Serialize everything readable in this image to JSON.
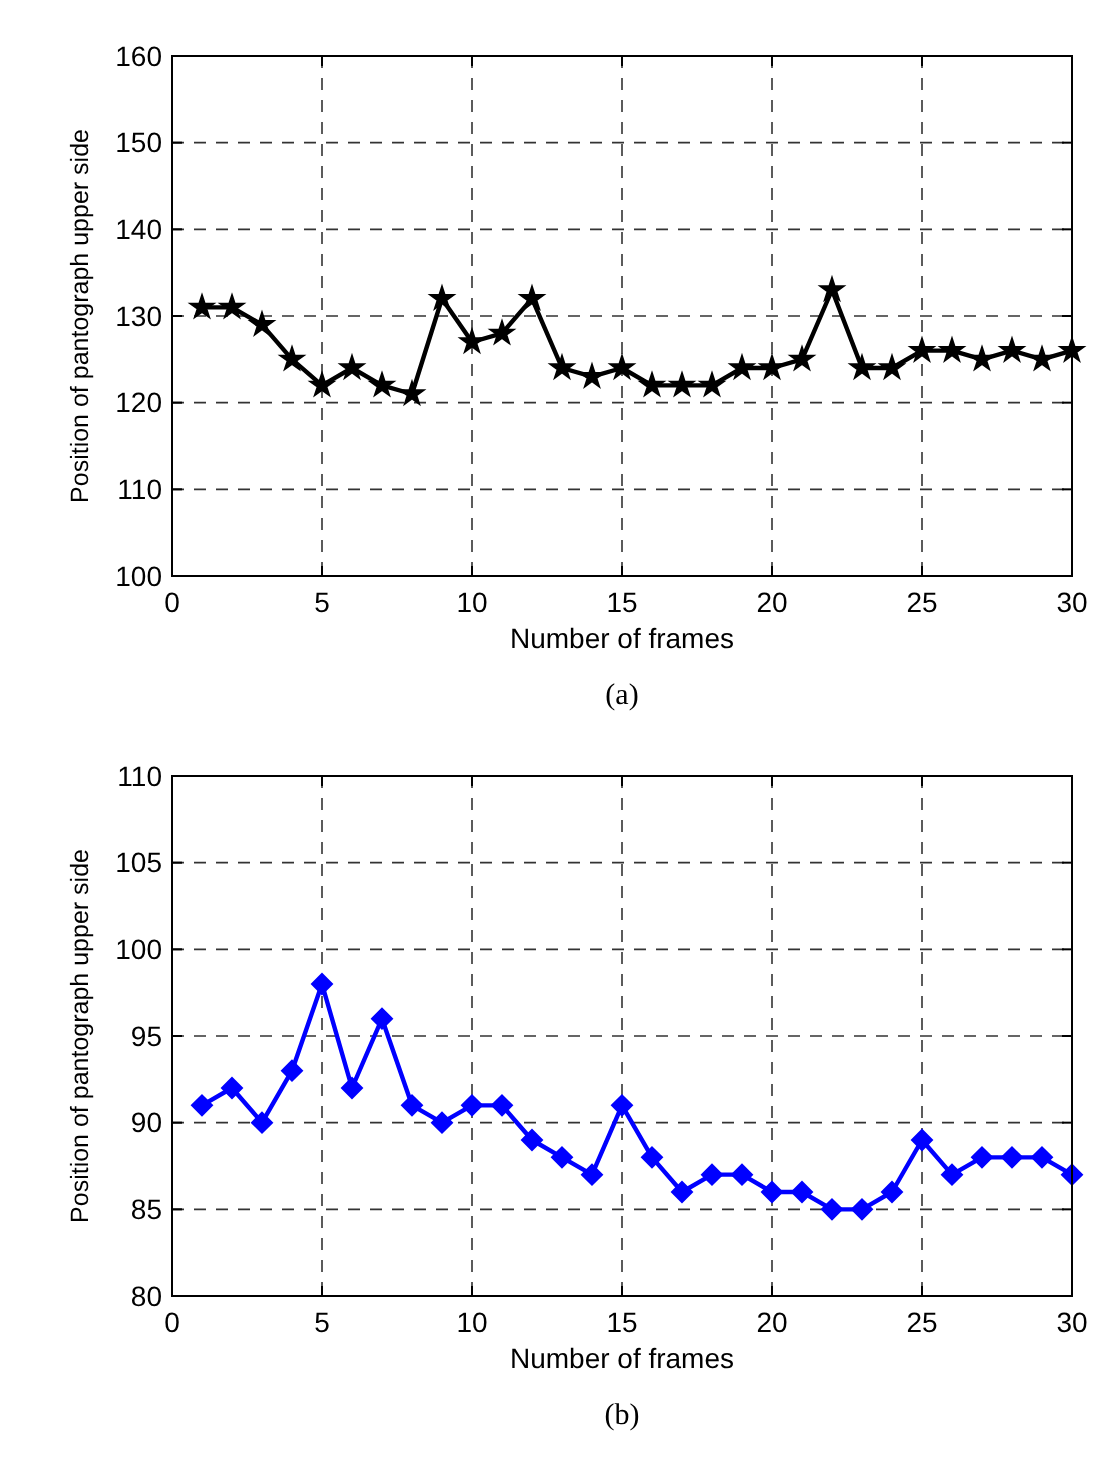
{
  "chart_data": [
    {
      "type": "line",
      "xlabel": "Number of frames",
      "ylabel": "Position of pantograph upper side",
      "annotations": [
        "(a)"
      ],
      "marker": "star",
      "line_style": "solid",
      "grid": true,
      "xlim": [
        0,
        30
      ],
      "xticks": [
        0,
        5,
        10,
        15,
        20,
        25,
        30
      ],
      "ylim": [
        100,
        160
      ],
      "yticks": [
        100,
        110,
        120,
        130,
        140,
        150,
        160
      ],
      "series": [
        {
          "color": "#000000",
          "x": [
            1,
            2,
            3,
            4,
            5,
            6,
            7,
            8,
            9,
            10,
            11,
            12,
            13,
            14,
            15,
            16,
            17,
            18,
            19,
            20,
            21,
            22,
            23,
            24,
            25,
            26,
            27,
            28,
            29,
            30
          ],
          "values": [
            131,
            131,
            129,
            125,
            122,
            124,
            122,
            121,
            132,
            127,
            128,
            132,
            124,
            123,
            124,
            122,
            122,
            122,
            124,
            124,
            125,
            133,
            124,
            124,
            126,
            126,
            125,
            126,
            125,
            126
          ]
        }
      ]
    },
    {
      "type": "line",
      "xlabel": "Number of frames",
      "ylabel": "Position of pantograph upper side",
      "annotations": [
        "(b)"
      ],
      "marker": "diamond",
      "line_style": "solid",
      "grid": true,
      "xlim": [
        0,
        30
      ],
      "xticks": [
        0,
        5,
        10,
        15,
        20,
        25,
        30
      ],
      "ylim": [
        80,
        110
      ],
      "yticks": [
        80,
        85,
        90,
        95,
        100,
        105,
        110
      ],
      "series": [
        {
          "color": "#0000ff",
          "x": [
            1,
            2,
            3,
            4,
            5,
            6,
            7,
            8,
            9,
            10,
            11,
            12,
            13,
            14,
            15,
            16,
            17,
            18,
            19,
            20,
            21,
            22,
            23,
            24,
            25,
            26,
            27,
            28,
            29,
            30
          ],
          "values": [
            91,
            92,
            90,
            93,
            98,
            92,
            96,
            91,
            90,
            91,
            91,
            89,
            88,
            87,
            91,
            88,
            86,
            87,
            87,
            86,
            86,
            85,
            85,
            86,
            89,
            87,
            88,
            88,
            88,
            87
          ]
        }
      ]
    }
  ]
}
